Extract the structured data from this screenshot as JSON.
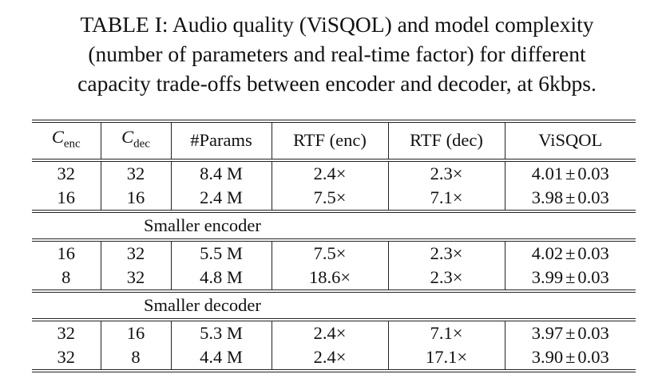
{
  "caption": {
    "line1": "TABLE I: Audio quality (ViSQOL) and model complexity",
    "line2": "(number of parameters and real-time factor) for different",
    "line3": "capacity trade-offs between encoder and decoder, at 6kbps."
  },
  "table": {
    "headers": {
      "c_enc_base": "C",
      "c_enc_sub": "enc",
      "c_dec_base": "C",
      "c_dec_sub": "dec",
      "params": "#Params",
      "rtf_enc": "RTF (enc)",
      "rtf_dec": "RTF (dec)",
      "visqol": "ViSQOL"
    },
    "groups": [
      {
        "label": "",
        "rows": [
          {
            "c_enc": "32",
            "c_dec": "32",
            "params": "8.4 M",
            "rtf_enc": "2.4×",
            "rtf_dec": "2.3×",
            "visqol_mean": "4.01",
            "pm": "±",
            "visqol_std": "0.03"
          },
          {
            "c_enc": "16",
            "c_dec": "16",
            "params": "2.4 M",
            "rtf_enc": "7.5×",
            "rtf_dec": "7.1×",
            "visqol_mean": "3.98",
            "pm": "±",
            "visqol_std": "0.03"
          }
        ]
      },
      {
        "label": "Smaller encoder",
        "rows": [
          {
            "c_enc": "16",
            "c_dec": "32",
            "params": "5.5 M",
            "rtf_enc": "7.5×",
            "rtf_dec": "2.3×",
            "visqol_mean": "4.02",
            "pm": "±",
            "visqol_std": "0.03"
          },
          {
            "c_enc": "8",
            "c_dec": "32",
            "params": "4.8 M",
            "rtf_enc": "18.6×",
            "rtf_dec": "2.3×",
            "visqol_mean": "3.99",
            "pm": "±",
            "visqol_std": "0.03"
          }
        ]
      },
      {
        "label": "Smaller decoder",
        "rows": [
          {
            "c_enc": "32",
            "c_dec": "16",
            "params": "5.3 M",
            "rtf_enc": "2.4×",
            "rtf_dec": "7.1×",
            "visqol_mean": "3.97",
            "pm": "±",
            "visqol_std": "0.03"
          },
          {
            "c_enc": "32",
            "c_dec": "8",
            "params": "4.4 M",
            "rtf_enc": "2.4×",
            "rtf_dec": "17.1×",
            "visqol_mean": "3.90",
            "pm": "±",
            "visqol_std": "0.03"
          }
        ]
      }
    ]
  }
}
